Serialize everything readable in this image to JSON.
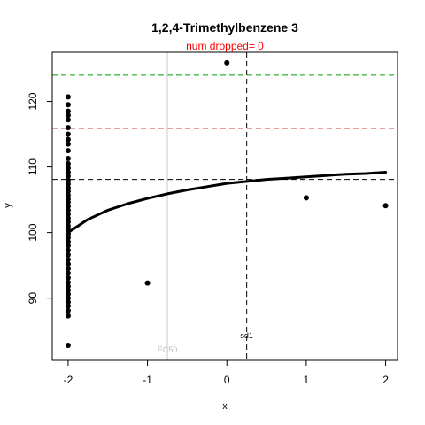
{
  "colors": {
    "points": "#000000",
    "curve": "#000000",
    "green_line": "#00a000",
    "red_line": "#cc0000",
    "ref_black": "#000000",
    "ec50_line": "#c8c8c8",
    "ec50_text": "#bbbbbb",
    "subtitle": "#ff0000"
  },
  "chart_data": {
    "type": "scatter",
    "title": "1,2,4-Trimethylbenzene 3",
    "subtitle": "num dropped= 0",
    "xlabel": "x",
    "ylabel": "y",
    "xlim": [
      -2.2,
      2.15
    ],
    "ylim": [
      80.5,
      127.5
    ],
    "xticks": [
      -2,
      -1,
      0,
      1,
      2
    ],
    "yticks": [
      90,
      100,
      110,
      120
    ],
    "grid": false,
    "points": {
      "x": [
        -2,
        -2,
        -2,
        -2,
        -2,
        -2,
        -2,
        -2,
        -2,
        -2,
        -2,
        -2,
        -2,
        -2,
        -2,
        -2,
        -2,
        -2,
        -2,
        -2,
        -2,
        -2,
        -2,
        -2,
        -2,
        -2,
        -2,
        -2,
        -2,
        -2,
        -2,
        -2,
        -2,
        -2,
        -2,
        -2,
        -2,
        -2,
        -2,
        -2,
        -2,
        -2,
        -2,
        -2,
        -2,
        -2,
        -2,
        -2,
        -2,
        -2,
        -1,
        0,
        1,
        2
      ],
      "y": [
        120.7,
        119.5,
        118.5,
        117.9,
        117.2,
        116.0,
        115.0,
        114.2,
        113.5,
        112.5,
        111.3,
        110.5,
        109.8,
        109.2,
        108.6,
        108.0,
        107.4,
        106.8,
        106.3,
        105.7,
        105.1,
        104.6,
        104.0,
        103.4,
        102.8,
        102.2,
        101.6,
        101.0,
        100.4,
        99.8,
        99.2,
        98.6,
        98.0,
        97.3,
        96.6,
        95.9,
        95.2,
        94.5,
        93.8,
        93.1,
        92.4,
        91.8,
        91.2,
        90.6,
        90.0,
        89.4,
        88.8,
        88.1,
        87.3,
        82.8,
        92.3,
        125.9,
        105.3,
        104.1
      ]
    },
    "fit_curve": {
      "x": [
        -2.0,
        -1.75,
        -1.5,
        -1.25,
        -1.0,
        -0.75,
        -0.5,
        -0.25,
        0.0,
        0.25,
        0.5,
        0.75,
        1.0,
        1.25,
        1.5,
        1.75,
        2.0
      ],
      "y": [
        100.0,
        102.0,
        103.4,
        104.4,
        105.2,
        105.9,
        106.5,
        107.0,
        107.5,
        107.8,
        108.1,
        108.3,
        108.5,
        108.7,
        108.9,
        109.0,
        109.2
      ]
    },
    "hlines": [
      {
        "y": 124.0,
        "style": "green"
      },
      {
        "y": 115.9,
        "style": "red"
      },
      {
        "y": 108.1,
        "style": "black"
      }
    ],
    "vlines": [
      {
        "x": -0.75,
        "label": "EC50",
        "style": "gray"
      },
      {
        "x": 0.25,
        "label": "sd1",
        "style": "black"
      }
    ]
  }
}
